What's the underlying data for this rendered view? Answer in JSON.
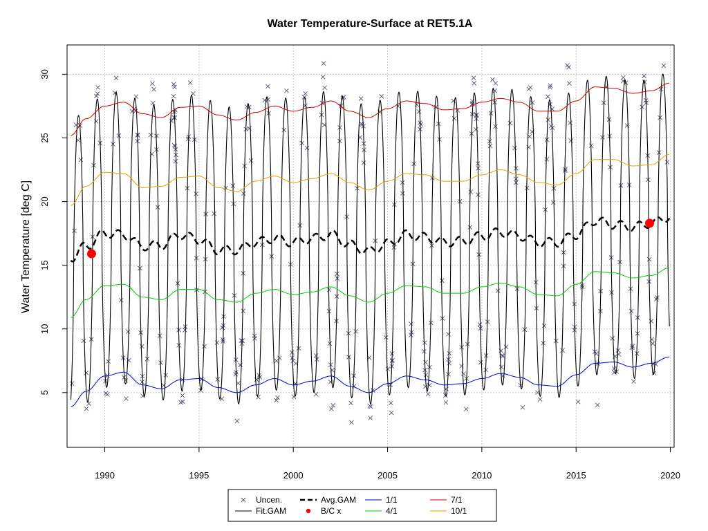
{
  "chart_data": {
    "type": "line",
    "title": "Water Temperature-Surface at RET5.1A",
    "xlabel": "",
    "ylabel": "Water Temperature [deg C]",
    "xlim": [
      1988.0,
      2020.2
    ],
    "ylim": [
      0.7,
      32.3
    ],
    "x_ticks": [
      1990,
      1995,
      2000,
      2005,
      2010,
      2015,
      2020
    ],
    "x_tick_labels": [
      "1990",
      "1995",
      "2000",
      "2005",
      "2010",
      "2015",
      "2020"
    ],
    "y_ticks": [
      5,
      10,
      15,
      20,
      25,
      30
    ],
    "y_tick_labels": [
      "5",
      "10",
      "15",
      "20",
      "25",
      "30"
    ],
    "grid": true,
    "legend_position": "bottom-center",
    "legend": [
      {
        "label": "Uncen.",
        "kind": "cross",
        "color": "#555577"
      },
      {
        "label": "Fit.GAM",
        "kind": "line",
        "color": "#000000"
      },
      {
        "label": "Avg.GAM",
        "kind": "dashed",
        "color": "#000000"
      },
      {
        "label": "B/C x",
        "kind": "dot",
        "color": "#ff0000"
      },
      {
        "label": "1/1",
        "kind": "line",
        "color": "#0000cc"
      },
      {
        "label": "4/1",
        "kind": "line",
        "color": "#00cc00"
      },
      {
        "label": "7/1",
        "kind": "line",
        "color": "#cc0000"
      },
      {
        "label": "10/1",
        "kind": "line",
        "color": "#e69f00"
      }
    ],
    "series": [
      {
        "name": "Fit.GAM",
        "style": "solid",
        "color": "#000000",
        "seasonal": {
          "year_start": 1988.2,
          "year_end": 2019.95,
          "peak_phase": 0.6,
          "sharpness": 1.6
        }
      },
      {
        "name": "Avg.GAM",
        "style": "dashed",
        "color": "#000000",
        "x": [
          1988.2,
          1989,
          1990,
          1991,
          1992,
          1993,
          1994,
          1995,
          1996,
          1997,
          1998,
          1999,
          2000,
          2001,
          2002,
          2003,
          2004,
          2005,
          2006,
          2007,
          2008,
          2009,
          2010,
          2011,
          2012,
          2013,
          2014,
          2015,
          2016,
          2017,
          2018,
          2019,
          2019.95
        ],
        "y": [
          15.6,
          16.5,
          17.5,
          17.4,
          16.5,
          16.6,
          17.4,
          17.0,
          16.2,
          16.2,
          16.8,
          17.1,
          16.8,
          17.1,
          17.4,
          16.6,
          16.1,
          16.7,
          17.4,
          17.2,
          16.8,
          16.9,
          17.3,
          17.6,
          17.3,
          16.8,
          16.8,
          17.4,
          18.5,
          18.2,
          18.0,
          18.3,
          18.8
        ]
      },
      {
        "name": "1/1",
        "style": "solid",
        "color": "#0000cc",
        "x": [
          1988.2,
          1989,
          1990,
          1991,
          1992,
          1993,
          1994,
          1995,
          1996,
          1997,
          1998,
          1999,
          2000,
          2001,
          2002,
          2003,
          2004,
          2005,
          2006,
          2007,
          2008,
          2009,
          2010,
          2011,
          2012,
          2013,
          2014,
          2015,
          2016,
          2017,
          2018,
          2019,
          2019.95
        ],
        "y": [
          3.9,
          5.1,
          6.3,
          6.6,
          5.6,
          5.3,
          6.0,
          6.1,
          5.4,
          5.0,
          5.6,
          6.1,
          5.6,
          5.9,
          6.3,
          5.5,
          5.0,
          5.7,
          6.3,
          6.0,
          5.6,
          5.7,
          6.1,
          6.5,
          6.2,
          5.6,
          5.5,
          6.4,
          7.3,
          7.4,
          7.0,
          7.3,
          7.8
        ]
      },
      {
        "name": "4/1",
        "style": "solid",
        "color": "#00cc00",
        "x": [
          1988.2,
          1989,
          1990,
          1991,
          1992,
          1993,
          1994,
          1995,
          1996,
          1997,
          1998,
          1999,
          2000,
          2001,
          2002,
          2003,
          2004,
          2005,
          2006,
          2007,
          2008,
          2009,
          2010,
          2011,
          2012,
          2013,
          2014,
          2015,
          2016,
          2017,
          2018,
          2019,
          2019.95
        ],
        "y": [
          10.9,
          12.3,
          13.4,
          13.5,
          12.5,
          12.3,
          13.1,
          13.1,
          12.3,
          12.1,
          12.8,
          13.1,
          12.7,
          12.9,
          13.3,
          12.6,
          12.1,
          12.8,
          13.4,
          13.3,
          12.8,
          12.8,
          13.3,
          13.6,
          13.3,
          12.7,
          12.6,
          13.5,
          14.5,
          14.4,
          14.0,
          14.2,
          14.8
        ]
      },
      {
        "name": "7/1",
        "style": "solid",
        "color": "#cc0000",
        "x": [
          1988.2,
          1989,
          1990,
          1991,
          1992,
          1993,
          1994,
          1995,
          1996,
          1997,
          1998,
          1999,
          2000,
          2001,
          2002,
          2003,
          2004,
          2005,
          2006,
          2007,
          2008,
          2009,
          2010,
          2011,
          2012,
          2013,
          2014,
          2015,
          2016,
          2017,
          2018,
          2019,
          2019.95
        ],
        "y": [
          25.2,
          26.5,
          27.5,
          27.8,
          26.9,
          26.6,
          27.4,
          27.5,
          26.8,
          26.4,
          27.0,
          27.5,
          27.1,
          27.4,
          27.9,
          27.1,
          26.6,
          27.3,
          27.9,
          27.7,
          27.2,
          27.3,
          27.8,
          28.1,
          27.8,
          27.1,
          27.1,
          27.9,
          29.0,
          28.9,
          28.5,
          28.7,
          29.3
        ]
      },
      {
        "name": "10/1",
        "style": "solid",
        "color": "#e69f00",
        "x": [
          1988.2,
          1989,
          1990,
          1991,
          1992,
          1993,
          1994,
          1995,
          1996,
          1997,
          1998,
          1999,
          2000,
          2001,
          2002,
          2003,
          2004,
          2005,
          2006,
          2007,
          2008,
          2009,
          2010,
          2011,
          2012,
          2013,
          2014,
          2015,
          2016,
          2017,
          2018,
          2019,
          2019.95
        ],
        "y": [
          19.7,
          21.2,
          22.3,
          22.2,
          21.1,
          21.2,
          21.9,
          22.0,
          21.1,
          20.8,
          21.6,
          22.0,
          21.5,
          21.8,
          22.2,
          21.5,
          20.9,
          21.6,
          22.2,
          22.1,
          21.6,
          21.6,
          22.1,
          22.5,
          22.1,
          21.5,
          21.3,
          22.2,
          23.3,
          23.3,
          22.8,
          22.9,
          23.7
        ]
      },
      {
        "name": "B/C x",
        "style": "points",
        "color": "#ff0000",
        "x": [
          1989.3,
          2018.9
        ],
        "y": [
          15.9,
          18.3
        ]
      }
    ],
    "scatter_count": 420,
    "scatter_color": "#555577"
  }
}
